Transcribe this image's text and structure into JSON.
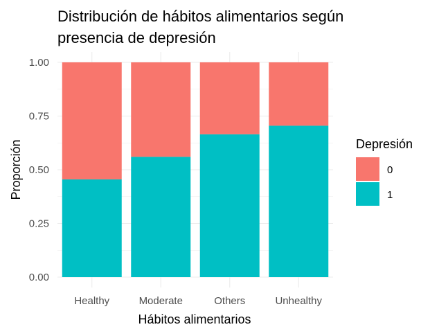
{
  "chart_data": {
    "type": "bar",
    "stacked": true,
    "title_lines": [
      "Distribución de hábitos alimentarios según",
      "presencia de depresión"
    ],
    "xlabel": "Hábitos alimentarios",
    "ylabel": "Proporción",
    "categories": [
      "Healthy",
      "Moderate",
      "Others",
      "Unhealthy"
    ],
    "ylim": [
      0,
      1
    ],
    "yticks": [
      "0.00",
      "0.25",
      "0.50",
      "0.75",
      "1.00"
    ],
    "ytick_values": [
      0,
      0.25,
      0.5,
      0.75,
      1.0
    ],
    "series": [
      {
        "name": "0",
        "color": "#F8766D",
        "values": [
          0.545,
          0.44,
          0.335,
          0.295
        ]
      },
      {
        "name": "1",
        "color": "#00BFC4",
        "values": [
          0.455,
          0.56,
          0.665,
          0.705
        ]
      }
    ],
    "legend": {
      "title": "Depresión",
      "placement": "right"
    },
    "grid": true,
    "grid_color": "#EBEBEB"
  }
}
